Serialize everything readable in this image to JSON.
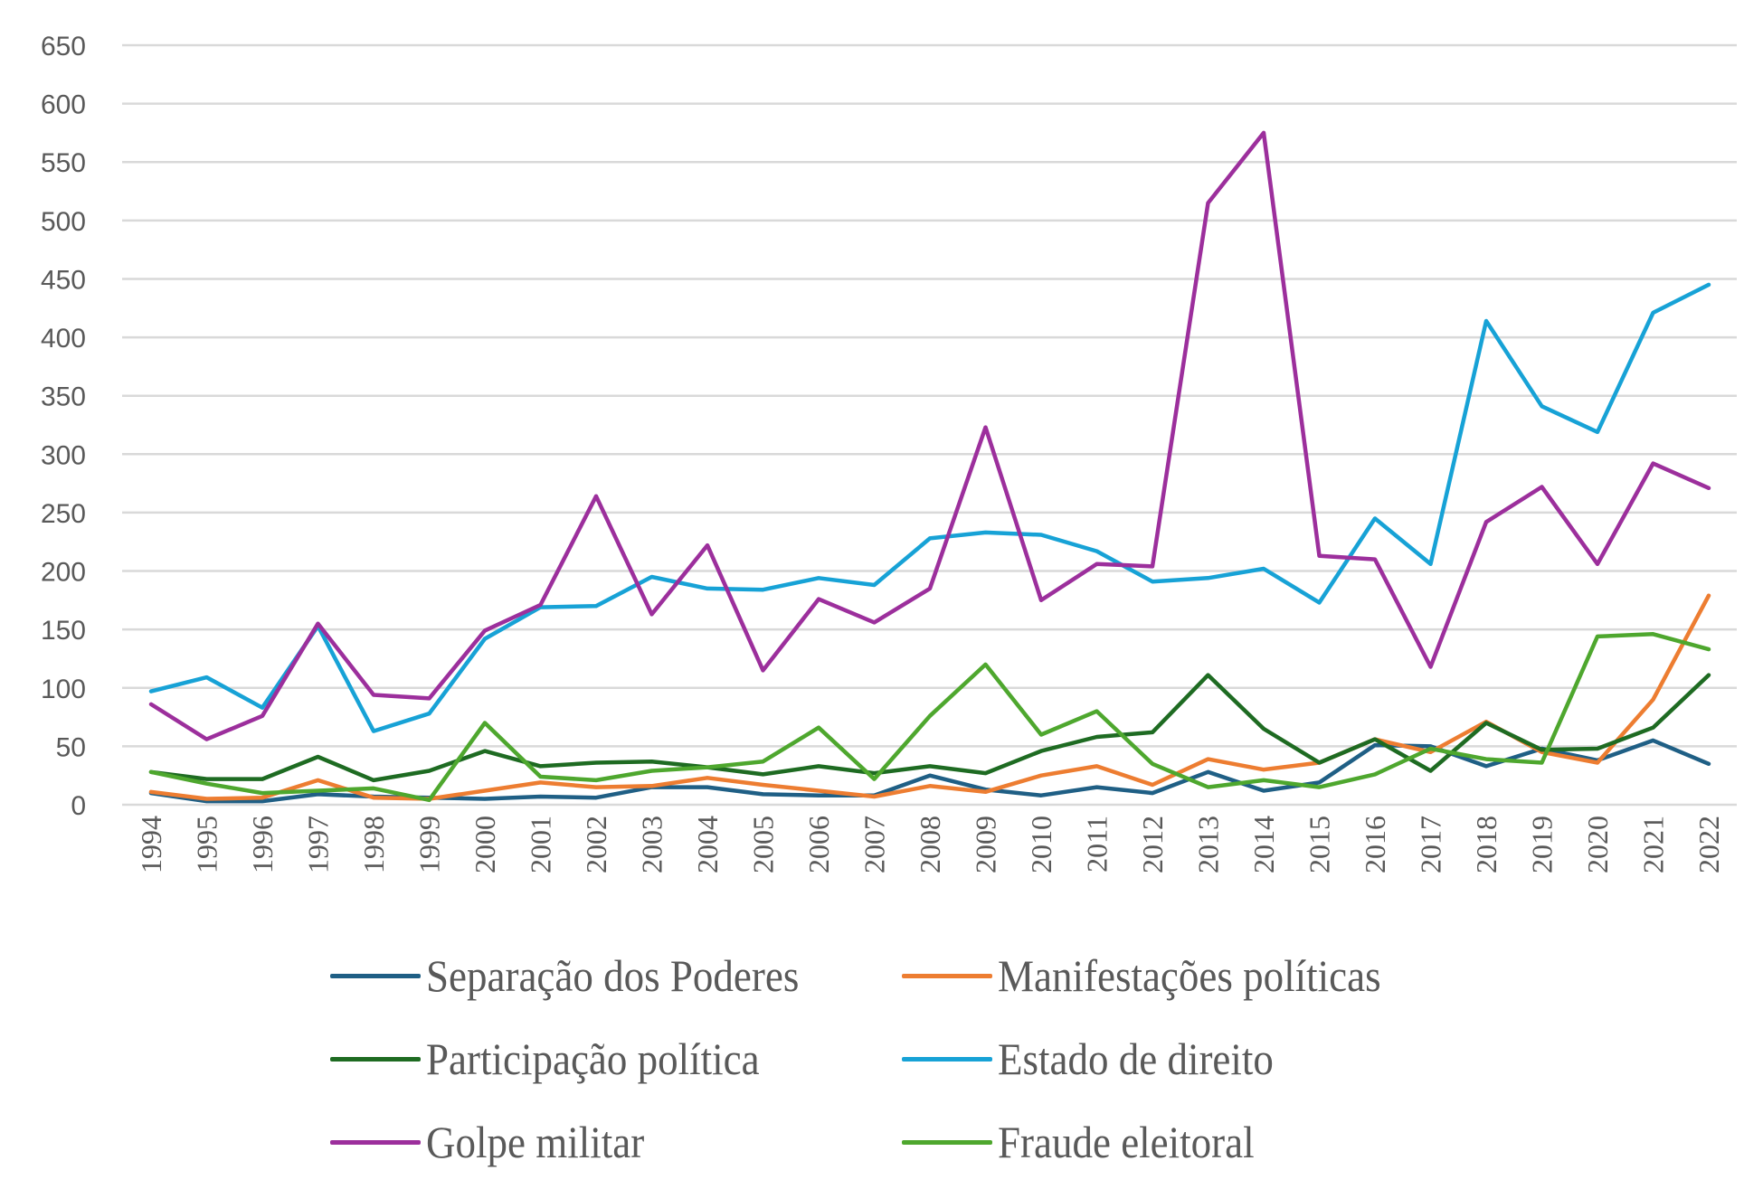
{
  "chart_data": {
    "type": "line",
    "title": "",
    "xlabel": "",
    "ylabel": "",
    "ylim": [
      0,
      650
    ],
    "yticks": [
      "0",
      "50",
      "100",
      "150",
      "200",
      "250",
      "300",
      "350",
      "400",
      "450",
      "500",
      "550",
      "600",
      "650"
    ],
    "ytick_values": [
      0,
      50,
      100,
      150,
      200,
      250,
      300,
      350,
      400,
      450,
      500,
      550,
      600,
      650
    ],
    "grid": true,
    "legend_position": "bottom",
    "categories": [
      "1994",
      "1995",
      "1996",
      "1997",
      "1998",
      "1999",
      "2000",
      "2001",
      "2002",
      "2003",
      "2004",
      "2005",
      "2006",
      "2007",
      "2008",
      "2009",
      "2010",
      "2011",
      "2012",
      "2013",
      "2014",
      "2015",
      "2016",
      "2017",
      "2018",
      "2019",
      "2020",
      "2021",
      "2022"
    ],
    "series": [
      {
        "name": "Separação dos Poderes",
        "color": "#1f5f85",
        "values": [
          10,
          3,
          3,
          9,
          7,
          6,
          5,
          7,
          6,
          15,
          15,
          9,
          8,
          8,
          25,
          13,
          8,
          15,
          10,
          28,
          12,
          19,
          51,
          50,
          33,
          48,
          38,
          55,
          35
        ]
      },
      {
        "name": "Manifestações políticas",
        "color": "#ed7d31",
        "values": [
          11,
          5,
          6,
          21,
          6,
          5,
          12,
          19,
          15,
          16,
          23,
          17,
          12,
          7,
          16,
          11,
          25,
          33,
          17,
          39,
          30,
          36,
          56,
          45,
          71,
          45,
          36,
          90,
          179
        ]
      },
      {
        "name": "Participação política",
        "color": "#1e6b22",
        "values": [
          28,
          22,
          22,
          41,
          21,
          29,
          46,
          33,
          36,
          37,
          32,
          26,
          33,
          27,
          33,
          27,
          46,
          58,
          62,
          111,
          65,
          36,
          56,
          29,
          70,
          47,
          48,
          66,
          111
        ]
      },
      {
        "name": "Estado de direito",
        "color": "#17a2d6",
        "values": [
          97,
          109,
          83,
          153,
          63,
          78,
          142,
          169,
          170,
          195,
          185,
          184,
          194,
          188,
          228,
          233,
          231,
          217,
          191,
          194,
          202,
          173,
          245,
          206,
          414,
          341,
          319,
          421,
          445
        ]
      },
      {
        "name": "Golpe militar",
        "color": "#9c2f9c",
        "values": [
          86,
          56,
          76,
          155,
          94,
          91,
          149,
          171,
          264,
          163,
          222,
          115,
          176,
          156,
          185,
          323,
          175,
          206,
          204,
          515,
          575,
          213,
          210,
          118,
          242,
          272,
          206,
          292,
          271
        ]
      },
      {
        "name": "Fraude eleitoral",
        "color": "#4ea72e",
        "values": [
          28,
          18,
          10,
          12,
          14,
          4,
          70,
          24,
          21,
          29,
          32,
          37,
          66,
          22,
          76,
          120,
          60,
          80,
          35,
          15,
          21,
          15,
          26,
          48,
          39,
          36,
          144,
          146,
          133
        ]
      }
    ]
  }
}
